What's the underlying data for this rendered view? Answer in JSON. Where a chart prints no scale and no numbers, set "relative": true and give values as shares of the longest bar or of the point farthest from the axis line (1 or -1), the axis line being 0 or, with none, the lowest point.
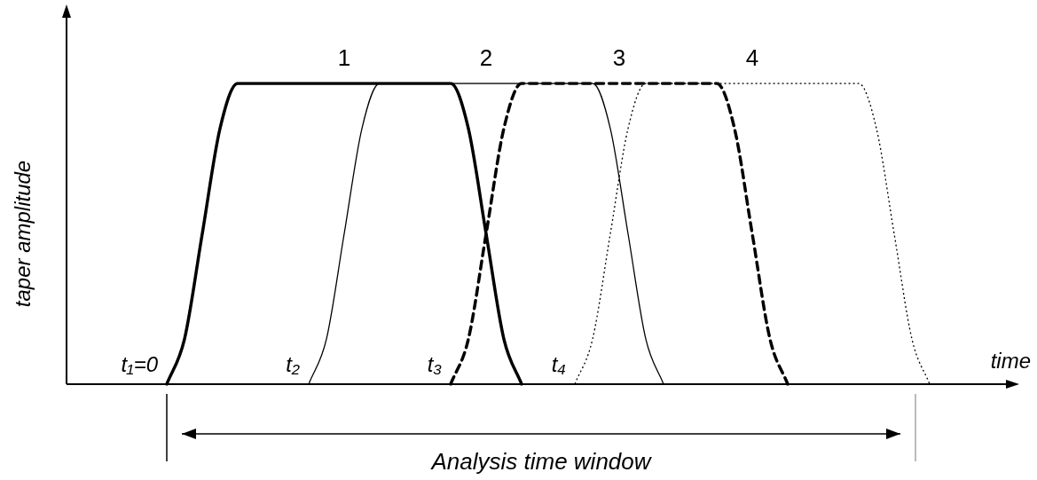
{
  "chart_data": {
    "type": "line",
    "relative": true,
    "xlabel": "time",
    "ylabel": "taper amplitude",
    "legend": false,
    "grid": false,
    "marker": "none",
    "categories": [
      null,
      null,
      null,
      null,
      null,
      null,
      null,
      null,
      null,
      null,
      null,
      null,
      null,
      null,
      null,
      null,
      null,
      null,
      null,
      null,
      null,
      null,
      null,
      null,
      null,
      null,
      null,
      null,
      null,
      null,
      null,
      null,
      null,
      null,
      null,
      null,
      null,
      null,
      null,
      null,
      null,
      null,
      null,
      null,
      null,
      null,
      null,
      null,
      null,
      null,
      null,
      null,
      null,
      null
    ],
    "series": [
      {
        "name": "1",
        "color": "#000000",
        "line_style": "solid",
        "values": [
          null,
          null,
          null,
          null,
          null,
          null,
          0,
          0.15,
          0.5,
          0.85,
          1,
          1,
          1,
          1,
          1,
          1,
          1,
          1,
          1,
          1,
          1,
          1,
          1,
          0.85,
          0.5,
          0.15,
          0,
          null,
          null,
          null,
          null,
          null,
          null,
          null,
          null,
          null,
          null,
          null,
          null,
          null,
          null,
          null,
          null,
          null,
          null,
          null,
          null,
          null,
          null,
          null,
          null,
          null,
          null,
          null
        ]
      },
      {
        "name": "2",
        "color": "#000000",
        "line_style": "solid",
        "values": [
          null,
          null,
          null,
          null,
          null,
          null,
          null,
          null,
          null,
          null,
          null,
          null,
          null,
          null,
          0,
          0.15,
          0.5,
          0.85,
          1,
          1,
          1,
          1,
          1,
          1,
          1,
          1,
          1,
          1,
          1,
          1,
          1,
          0.85,
          0.5,
          0.15,
          0,
          null,
          null,
          null,
          null,
          null,
          null,
          null,
          null,
          null,
          null,
          null,
          null,
          null,
          null,
          null,
          null,
          null,
          null,
          null
        ]
      },
      {
        "name": "3",
        "color": "#000000",
        "line_style": "dashed",
        "values": [
          null,
          null,
          null,
          null,
          null,
          null,
          null,
          null,
          null,
          null,
          null,
          null,
          null,
          null,
          null,
          null,
          null,
          null,
          null,
          null,
          null,
          null,
          0,
          0.15,
          0.5,
          0.85,
          1,
          1,
          1,
          1,
          1,
          1,
          1,
          1,
          1,
          1,
          1,
          1,
          0.85,
          0.5,
          0.15,
          0,
          null,
          null,
          null,
          null,
          null,
          null,
          null,
          null,
          null,
          null,
          null,
          null
        ]
      },
      {
        "name": "4",
        "color": "#000000",
        "line_style": "dotted",
        "values": [
          null,
          null,
          null,
          null,
          null,
          null,
          null,
          null,
          null,
          null,
          null,
          null,
          null,
          null,
          null,
          null,
          null,
          null,
          null,
          null,
          null,
          null,
          null,
          null,
          null,
          null,
          null,
          null,
          null,
          0,
          0.15,
          0.5,
          0.85,
          1,
          1,
          1,
          1,
          1,
          1,
          1,
          1,
          1,
          1,
          1,
          1,
          1,
          0.85,
          0.5,
          0.15,
          0,
          null,
          null,
          null,
          null
        ]
      }
    ],
    "annotations": [
      "t₁=0",
      "t₂",
      "t₃",
      "t₄",
      "Analysis time window"
    ]
  }
}
